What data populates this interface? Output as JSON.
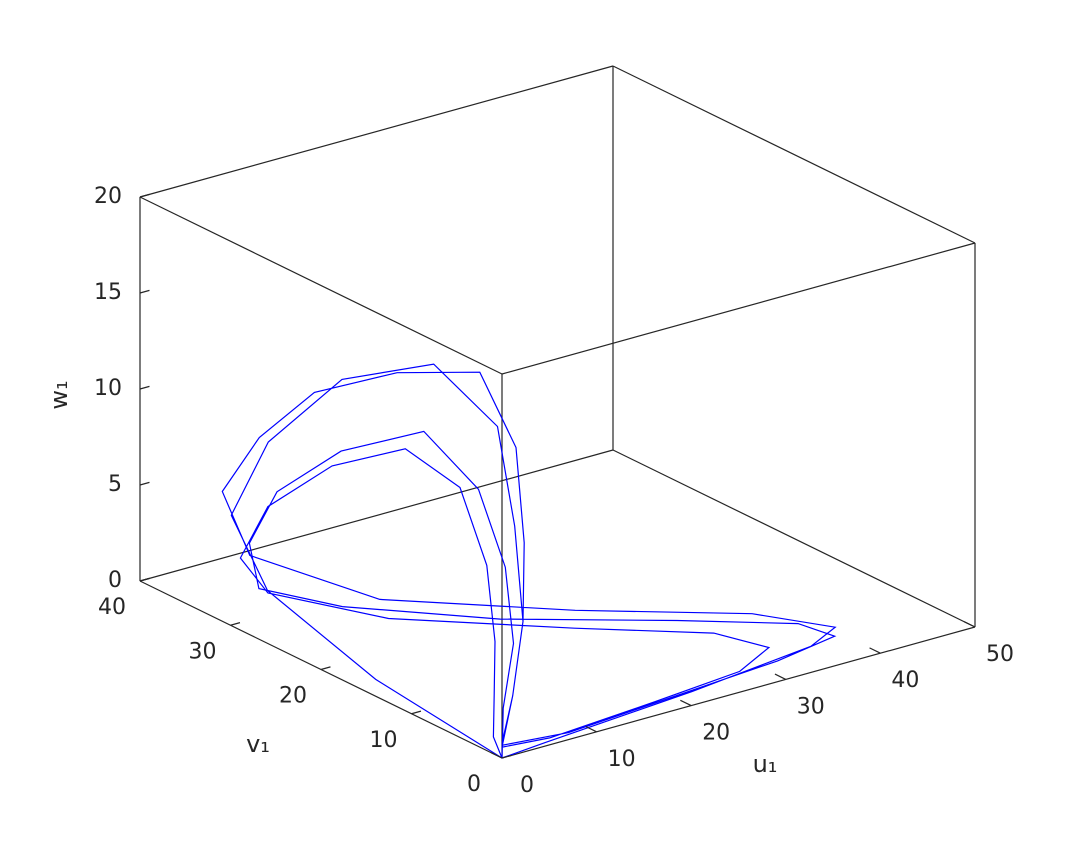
{
  "chart_data": {
    "type": "line3d",
    "xlabel": "u₁",
    "ylabel": "v₁",
    "zlabel": "w₁",
    "xlim": [
      0,
      50
    ],
    "ylim": [
      0,
      40
    ],
    "zlim": [
      0,
      20
    ],
    "xticks": [
      0,
      10,
      20,
      30,
      40,
      50
    ],
    "yticks": [
      0,
      10,
      20,
      30,
      40
    ],
    "zticks": [
      0,
      5,
      10,
      15,
      20
    ],
    "box": true,
    "series": [
      {
        "color": "#0000ff",
        "x": [
          0,
          1,
          2,
          2,
          4,
          7,
          10,
          11,
          9,
          7,
          4,
          1,
          8,
          20,
          32,
          39,
          38,
          30,
          18,
          8,
          3,
          2,
          3,
          5,
          8,
          9,
          8,
          6,
          3,
          1,
          6,
          18,
          28,
          33,
          31,
          22,
          10,
          3,
          2,
          3,
          5,
          7,
          8,
          7,
          5,
          3,
          1,
          0,
          5,
          22,
          36,
          40,
          36,
          24,
          11,
          3,
          2,
          4,
          6,
          9,
          12,
          12,
          10,
          7,
          4,
          1,
          0
        ],
        "y": [
          0,
          15,
          28,
          32,
          30,
          25,
          18,
          12,
          8,
          5,
          3,
          1,
          1,
          2,
          3,
          4,
          7,
          12,
          19,
          26,
          30,
          30,
          28,
          23,
          17,
          12,
          8,
          5,
          3,
          1,
          1,
          2,
          3,
          5,
          9,
          15,
          23,
          29,
          31,
          29,
          24,
          18,
          13,
          9,
          6,
          4,
          2,
          0,
          0.5,
          2,
          3.5,
          5,
          10,
          17,
          25,
          31,
          33,
          31,
          27,
          21,
          15,
          11,
          8,
          5,
          3,
          1,
          0
        ],
        "z": [
          0,
          0.5,
          2,
          5,
          9,
          13,
          15,
          13,
          9,
          5,
          2,
          0.3,
          0,
          0,
          0,
          0.1,
          0.2,
          0.3,
          0.4,
          0.8,
          1.5,
          4,
          7,
          10,
          12,
          10,
          7,
          4,
          1.5,
          0.2,
          0,
          0,
          0,
          0.1,
          0.2,
          0.3,
          0.6,
          1.5,
          3,
          6,
          9,
          11,
          10,
          7,
          4,
          2,
          0.5,
          0,
          0,
          0,
          0.1,
          0.2,
          0.3,
          0.5,
          1,
          3,
          6,
          9,
          12,
          14,
          15,
          12,
          8,
          5,
          2,
          0.5,
          0
        ]
      }
    ]
  }
}
